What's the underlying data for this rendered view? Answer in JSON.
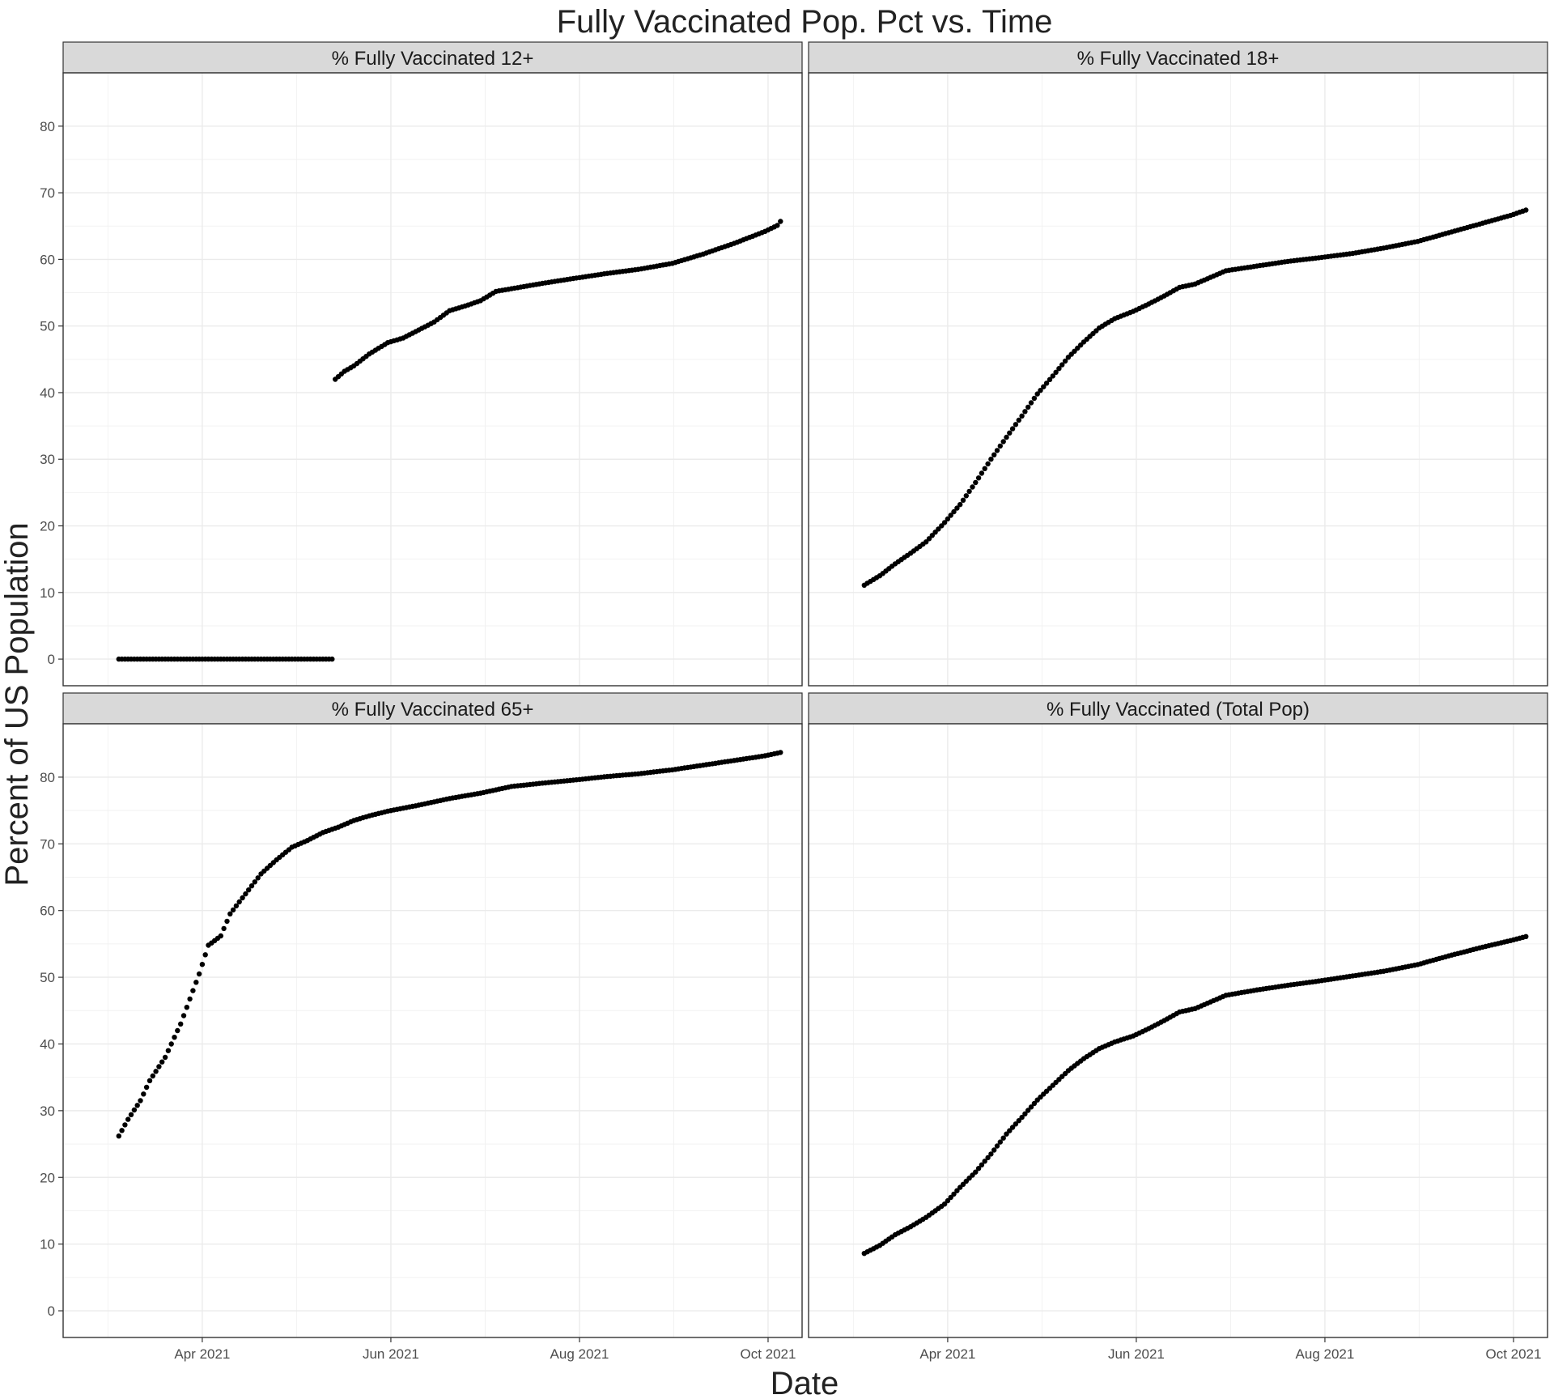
{
  "chart_data": {
    "type": "scatter",
    "title": "Fully Vaccinated Pop. Pct vs. Time",
    "xlabel": "Date",
    "ylabel": "Percent of US Population",
    "x_range": [
      "2021-02-15",
      "2021-10-12"
    ],
    "ylim": [
      -4,
      88
    ],
    "x_ticks": [
      {
        "date": "2021-04-01",
        "label": "Apr 2021"
      },
      {
        "date": "2021-06-01",
        "label": "Jun 2021"
      },
      {
        "date": "2021-08-01",
        "label": "Aug 2021"
      },
      {
        "date": "2021-10-01",
        "label": "Oct 2021"
      }
    ],
    "y_ticks": [
      0,
      10,
      20,
      30,
      40,
      50,
      60,
      70,
      80
    ],
    "grid": true,
    "point_color": "#000000",
    "panels": [
      {
        "name": "% Fully Vaccinated 12+",
        "points": [
          [
            "2021-03-05",
            0
          ],
          [
            "2021-03-25",
            0
          ],
          [
            "2021-04-15",
            0
          ],
          [
            "2021-05-05",
            0
          ],
          [
            "2021-05-13",
            0
          ],
          [
            "2021-05-14",
            42
          ],
          [
            "2021-05-17",
            43.2
          ],
          [
            "2021-05-20",
            44
          ],
          [
            "2021-05-25",
            45.8
          ],
          [
            "2021-05-31",
            47.5
          ],
          [
            "2021-06-05",
            48.2
          ],
          [
            "2021-06-10",
            49.4
          ],
          [
            "2021-06-15",
            50.6
          ],
          [
            "2021-06-20",
            52.3
          ],
          [
            "2021-06-25",
            53
          ],
          [
            "2021-06-30",
            53.8
          ],
          [
            "2021-07-05",
            55.2
          ],
          [
            "2021-07-10",
            55.6
          ],
          [
            "2021-07-20",
            56.4
          ],
          [
            "2021-07-31",
            57.2
          ],
          [
            "2021-08-10",
            57.9
          ],
          [
            "2021-08-20",
            58.5
          ],
          [
            "2021-08-31",
            59.4
          ],
          [
            "2021-09-10",
            60.8
          ],
          [
            "2021-09-20",
            62.4
          ],
          [
            "2021-09-30",
            64.2
          ],
          [
            "2021-10-04",
            65.1
          ],
          [
            "2021-10-05",
            65.7
          ]
        ]
      },
      {
        "name": "% Fully Vaccinated 18+",
        "points": [
          [
            "2021-03-05",
            11.1
          ],
          [
            "2021-03-10",
            12.5
          ],
          [
            "2021-03-15",
            14.3
          ],
          [
            "2021-03-20",
            15.9
          ],
          [
            "2021-03-25",
            17.6
          ],
          [
            "2021-03-31",
            20.5
          ],
          [
            "2021-04-05",
            23.2
          ],
          [
            "2021-04-10",
            26.5
          ],
          [
            "2021-04-15",
            30
          ],
          [
            "2021-04-20",
            33.3
          ],
          [
            "2021-04-25",
            36.5
          ],
          [
            "2021-04-30",
            39.8
          ],
          [
            "2021-05-05",
            42.5
          ],
          [
            "2021-05-10",
            45.3
          ],
          [
            "2021-05-15",
            47.6
          ],
          [
            "2021-05-20",
            49.7
          ],
          [
            "2021-05-25",
            51.1
          ],
          [
            "2021-05-31",
            52.2
          ],
          [
            "2021-06-05",
            53.3
          ],
          [
            "2021-06-10",
            54.5
          ],
          [
            "2021-06-15",
            55.8
          ],
          [
            "2021-06-20",
            56.3
          ],
          [
            "2021-06-30",
            58.3
          ],
          [
            "2021-07-10",
            59
          ],
          [
            "2021-07-20",
            59.7
          ],
          [
            "2021-07-31",
            60.3
          ],
          [
            "2021-08-10",
            60.9
          ],
          [
            "2021-08-20",
            61.7
          ],
          [
            "2021-08-31",
            62.7
          ],
          [
            "2021-09-10",
            64
          ],
          [
            "2021-09-20",
            65.3
          ],
          [
            "2021-09-30",
            66.6
          ],
          [
            "2021-10-05",
            67.4
          ]
        ]
      },
      {
        "name": "% Fully Vaccinated 65+",
        "points": [
          [
            "2021-03-05",
            26.2
          ],
          [
            "2021-03-08",
            28.7
          ],
          [
            "2021-03-12",
            31.5
          ],
          [
            "2021-03-15",
            34.5
          ],
          [
            "2021-03-20",
            38
          ],
          [
            "2021-03-25",
            43
          ],
          [
            "2021-03-31",
            50.5
          ],
          [
            "2021-04-03",
            54.8
          ],
          [
            "2021-04-07",
            56.2
          ],
          [
            "2021-04-10",
            59.5
          ],
          [
            "2021-04-15",
            62.5
          ],
          [
            "2021-04-20",
            65.5
          ],
          [
            "2021-04-25",
            67.6
          ],
          [
            "2021-04-30",
            69.5
          ],
          [
            "2021-05-05",
            70.5
          ],
          [
            "2021-05-10",
            71.7
          ],
          [
            "2021-05-15",
            72.5
          ],
          [
            "2021-05-20",
            73.5
          ],
          [
            "2021-05-25",
            74.2
          ],
          [
            "2021-05-31",
            74.9
          ],
          [
            "2021-06-10",
            75.8
          ],
          [
            "2021-06-20",
            76.8
          ],
          [
            "2021-06-30",
            77.6
          ],
          [
            "2021-07-10",
            78.6
          ],
          [
            "2021-07-20",
            79.1
          ],
          [
            "2021-07-31",
            79.6
          ],
          [
            "2021-08-10",
            80.1
          ],
          [
            "2021-08-20",
            80.5
          ],
          [
            "2021-08-31",
            81.1
          ],
          [
            "2021-09-10",
            81.8
          ],
          [
            "2021-09-20",
            82.5
          ],
          [
            "2021-09-30",
            83.2
          ],
          [
            "2021-10-05",
            83.7
          ]
        ]
      },
      {
        "name": "% Fully Vaccinated (Total Pop)",
        "points": [
          [
            "2021-03-05",
            8.6
          ],
          [
            "2021-03-10",
            9.8
          ],
          [
            "2021-03-15",
            11.4
          ],
          [
            "2021-03-20",
            12.6
          ],
          [
            "2021-03-25",
            14
          ],
          [
            "2021-03-31",
            16
          ],
          [
            "2021-04-05",
            18.5
          ],
          [
            "2021-04-10",
            20.8
          ],
          [
            "2021-04-15",
            23.5
          ],
          [
            "2021-04-20",
            26.5
          ],
          [
            "2021-04-25",
            29
          ],
          [
            "2021-04-30",
            31.6
          ],
          [
            "2021-05-05",
            33.8
          ],
          [
            "2021-05-10",
            36
          ],
          [
            "2021-05-15",
            37.8
          ],
          [
            "2021-05-20",
            39.3
          ],
          [
            "2021-05-25",
            40.3
          ],
          [
            "2021-05-31",
            41.2
          ],
          [
            "2021-06-05",
            42.3
          ],
          [
            "2021-06-10",
            43.5
          ],
          [
            "2021-06-15",
            44.8
          ],
          [
            "2021-06-20",
            45.3
          ],
          [
            "2021-06-30",
            47.3
          ],
          [
            "2021-07-10",
            48.1
          ],
          [
            "2021-07-20",
            48.8
          ],
          [
            "2021-07-31",
            49.5
          ],
          [
            "2021-08-10",
            50.2
          ],
          [
            "2021-08-20",
            50.9
          ],
          [
            "2021-08-31",
            51.9
          ],
          [
            "2021-09-10",
            53.2
          ],
          [
            "2021-09-20",
            54.4
          ],
          [
            "2021-09-30",
            55.5
          ],
          [
            "2021-10-05",
            56.1
          ]
        ]
      }
    ]
  }
}
